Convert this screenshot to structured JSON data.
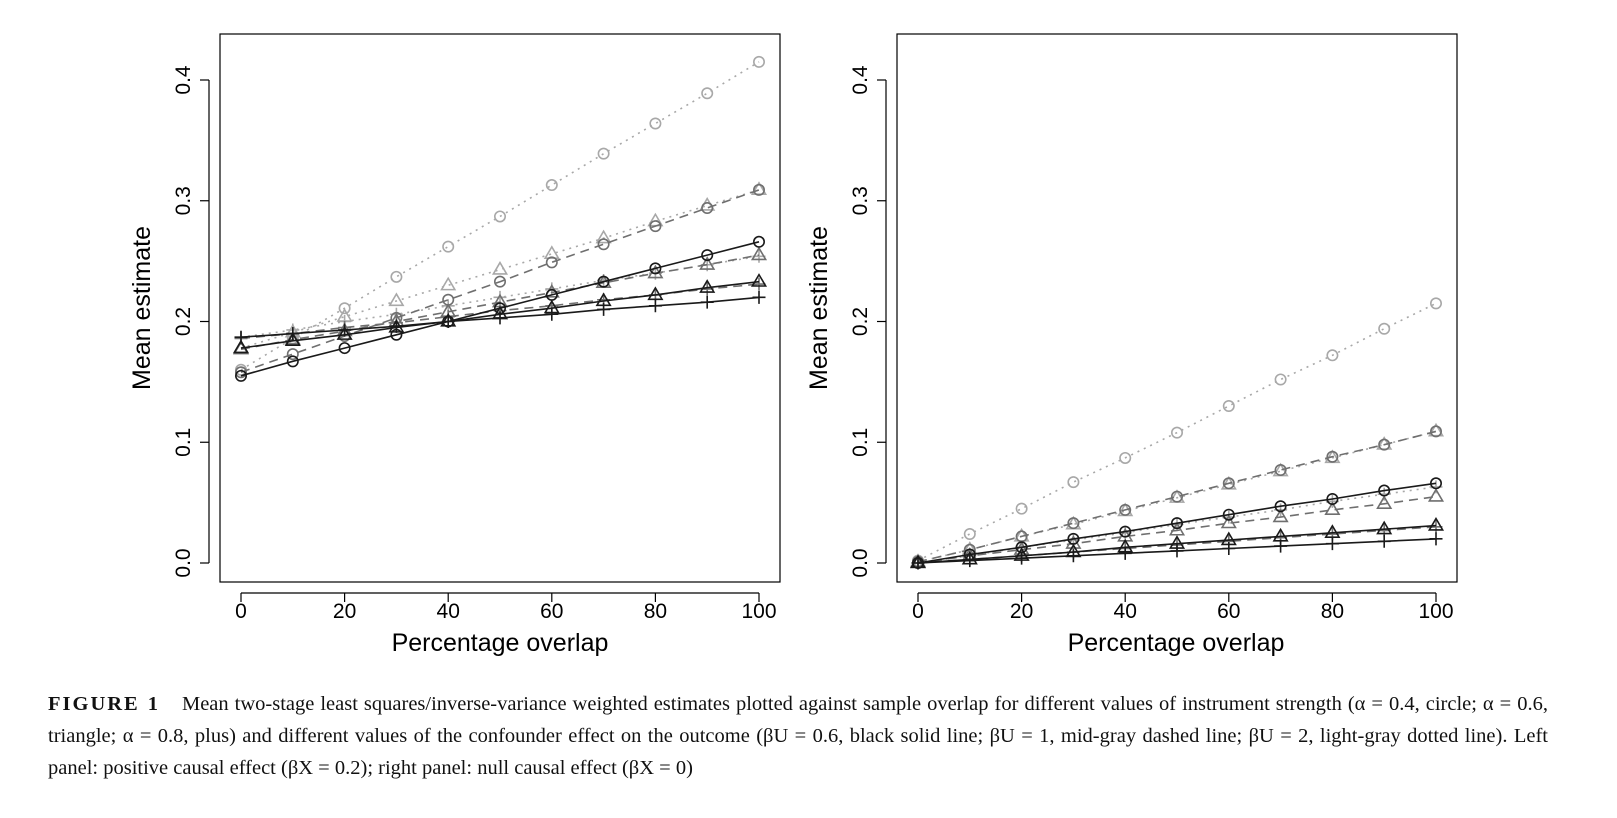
{
  "styles": {
    "black_solid": {
      "color": "#1a1a1a",
      "dash": ""
    },
    "gray_dashed": {
      "color": "#6f6f6f",
      "dash": "9,6"
    },
    "light_dotted": {
      "color": "#a8a8a8",
      "dash": "2,5"
    }
  },
  "chart_data": [
    {
      "type": "line",
      "xlabel": "Percentage overlap",
      "ylabel": "Mean estimate",
      "xlim": [
        0,
        100
      ],
      "ylim": [
        0,
        0.4
      ],
      "xticks": [
        "0",
        "20",
        "40",
        "60",
        "80",
        "100"
      ],
      "yticks": [
        "0.0",
        "0.1",
        "0.2",
        "0.3",
        "0.4"
      ],
      "x": [
        0,
        10,
        20,
        30,
        40,
        50,
        60,
        70,
        80,
        90,
        100
      ],
      "series": [
        {
          "marker": "circle",
          "style": "light_dotted",
          "values": [
            0.16,
            0.186,
            0.211,
            0.237,
            0.262,
            0.287,
            0.313,
            0.339,
            0.364,
            0.389,
            0.415
          ]
        },
        {
          "marker": "circle",
          "style": "gray_dashed",
          "values": [
            0.158,
            0.173,
            0.188,
            0.203,
            0.218,
            0.233,
            0.249,
            0.264,
            0.279,
            0.294,
            0.309
          ]
        },
        {
          "marker": "triangle",
          "style": "light_dotted",
          "values": [
            0.178,
            0.191,
            0.204,
            0.217,
            0.23,
            0.243,
            0.256,
            0.269,
            0.283,
            0.296,
            0.309
          ]
        },
        {
          "marker": "circle",
          "style": "black_solid",
          "values": [
            0.155,
            0.167,
            0.178,
            0.189,
            0.2,
            0.211,
            0.222,
            0.233,
            0.244,
            0.255,
            0.266
          ]
        },
        {
          "marker": "plus",
          "style": "light_dotted",
          "values": [
            0.187,
            0.193,
            0.2,
            0.206,
            0.213,
            0.22,
            0.227,
            0.234,
            0.24,
            0.247,
            0.254
          ]
        },
        {
          "marker": "triangle",
          "style": "gray_dashed",
          "values": [
            0.177,
            0.185,
            0.192,
            0.2,
            0.208,
            0.216,
            0.224,
            0.232,
            0.24,
            0.247,
            0.255
          ]
        },
        {
          "marker": "triangle",
          "style": "black_solid",
          "values": [
            0.178,
            0.184,
            0.189,
            0.195,
            0.2,
            0.206,
            0.211,
            0.217,
            0.222,
            0.228,
            0.233
          ]
        },
        {
          "marker": "plus",
          "style": "gray_dashed",
          "values": [
            0.186,
            0.19,
            0.195,
            0.199,
            0.204,
            0.209,
            0.213,
            0.218,
            0.222,
            0.227,
            0.231
          ]
        },
        {
          "marker": "plus",
          "style": "black_solid",
          "values": [
            0.187,
            0.19,
            0.193,
            0.196,
            0.2,
            0.203,
            0.206,
            0.21,
            0.213,
            0.216,
            0.22
          ]
        }
      ]
    },
    {
      "type": "line",
      "xlabel": "Percentage overlap",
      "ylabel": "Mean estimate",
      "xlim": [
        0,
        100
      ],
      "ylim": [
        0,
        0.4
      ],
      "xticks": [
        "0",
        "20",
        "40",
        "60",
        "80",
        "100"
      ],
      "yticks": [
        "0.0",
        "0.1",
        "0.2",
        "0.3",
        "0.4"
      ],
      "x": [
        0,
        10,
        20,
        30,
        40,
        50,
        60,
        70,
        80,
        90,
        100
      ],
      "series": [
        {
          "marker": "circle",
          "style": "light_dotted",
          "values": [
            0.002,
            0.024,
            0.045,
            0.067,
            0.087,
            0.108,
            0.13,
            0.152,
            0.172,
            0.194,
            0.215
          ]
        },
        {
          "marker": "circle",
          "style": "gray_dashed",
          "values": [
            0.001,
            0.011,
            0.022,
            0.033,
            0.044,
            0.055,
            0.066,
            0.077,
            0.088,
            0.098,
            0.109
          ]
        },
        {
          "marker": "triangle",
          "style": "light_dotted",
          "values": [
            0.001,
            0.011,
            0.022,
            0.032,
            0.043,
            0.054,
            0.065,
            0.076,
            0.087,
            0.098,
            0.109
          ]
        },
        {
          "marker": "circle",
          "style": "black_solid",
          "values": [
            0.0,
            0.007,
            0.013,
            0.02,
            0.026,
            0.033,
            0.04,
            0.047,
            0.053,
            0.06,
            0.066
          ]
        },
        {
          "marker": "plus",
          "style": "light_dotted",
          "values": [
            0.0,
            0.006,
            0.013,
            0.019,
            0.025,
            0.032,
            0.038,
            0.044,
            0.051,
            0.057,
            0.063
          ]
        },
        {
          "marker": "triangle",
          "style": "gray_dashed",
          "values": [
            0.0,
            0.006,
            0.011,
            0.016,
            0.022,
            0.027,
            0.033,
            0.038,
            0.044,
            0.049,
            0.055
          ]
        },
        {
          "marker": "triangle",
          "style": "black_solid",
          "values": [
            0.0,
            0.003,
            0.006,
            0.009,
            0.013,
            0.016,
            0.019,
            0.022,
            0.025,
            0.028,
            0.031
          ]
        },
        {
          "marker": "plus",
          "style": "gray_dashed",
          "values": [
            0.0,
            0.003,
            0.006,
            0.009,
            0.012,
            0.015,
            0.018,
            0.021,
            0.024,
            0.027,
            0.03
          ]
        },
        {
          "marker": "plus",
          "style": "black_solid",
          "values": [
            0.0,
            0.002,
            0.004,
            0.006,
            0.008,
            0.01,
            0.012,
            0.014,
            0.016,
            0.018,
            0.02
          ]
        }
      ]
    }
  ],
  "caption": {
    "label": "FIGURE 1",
    "text": "Mean two-stage least squares/inverse-variance weighted estimates plotted against sample overlap for different values of instrument strength (α = 0.4, circle; α = 0.6, triangle; α = 0.8, plus) and different values of the confounder effect on the outcome (βU = 0.6, black solid line; βU = 1, mid-gray dashed line; βU = 2, light-gray dotted line). Left panel: positive causal effect (βX = 0.2); right panel: null causal effect (βX = 0)"
  }
}
